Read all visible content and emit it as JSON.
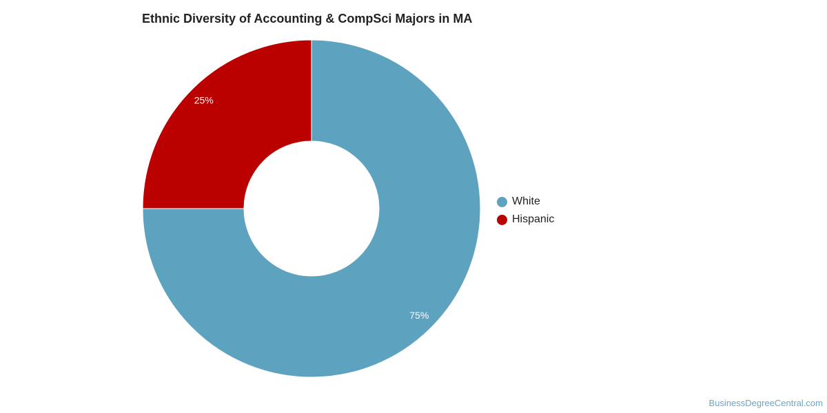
{
  "chart_data": {
    "type": "pie",
    "variant": "donut",
    "title": "Ethnic Diversity of Accounting & CompSci Majors in MA",
    "categories": [
      "White",
      "Hispanic"
    ],
    "values": [
      75,
      25
    ],
    "labels": [
      "75%",
      "25%"
    ],
    "colors": [
      "#5da2bf",
      "#bb0000"
    ],
    "legend_position": "right"
  },
  "source": {
    "label": "BusinessDegreeCentral.com"
  }
}
